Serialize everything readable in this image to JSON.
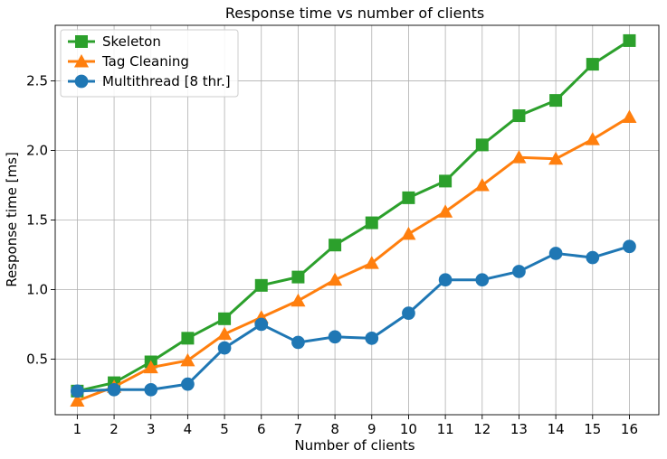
{
  "chart_data": {
    "type": "line",
    "title": "Response time vs number of clients",
    "xlabel": "Number of clients",
    "ylabel": "Response time [ms]",
    "x": [
      1,
      2,
      3,
      4,
      5,
      6,
      7,
      8,
      9,
      10,
      11,
      12,
      13,
      14,
      15,
      16
    ],
    "xlim": [
      0.4,
      16.8
    ],
    "ylim": [
      0.1,
      2.9
    ],
    "yticks": [
      0.5,
      1.0,
      1.5,
      2.0,
      2.5
    ],
    "ytick_labels": [
      "0.5",
      "1.0",
      "1.5",
      "2.0",
      "2.5"
    ],
    "grid": true,
    "legend_position": "upper left",
    "series": [
      {
        "name": "Skeleton",
        "color": "#2ca02c",
        "marker": "square",
        "values": [
          0.27,
          0.33,
          0.48,
          0.65,
          0.79,
          1.03,
          1.09,
          1.32,
          1.48,
          1.66,
          1.78,
          2.04,
          2.25,
          2.36,
          2.62,
          2.79
        ]
      },
      {
        "name": "Tag Cleaning",
        "color": "#ff7f0e",
        "marker": "triangle",
        "values": [
          0.2,
          0.3,
          0.44,
          0.49,
          0.68,
          0.8,
          0.92,
          1.07,
          1.19,
          1.4,
          1.56,
          1.75,
          1.95,
          1.94,
          2.08,
          2.24
        ]
      },
      {
        "name": "Multithread [8 thr.]",
        "color": "#1f77b4",
        "marker": "circle",
        "values": [
          0.27,
          0.28,
          0.28,
          0.32,
          0.58,
          0.75,
          0.62,
          0.66,
          0.65,
          0.83,
          1.07,
          1.07,
          1.13,
          1.26,
          1.23,
          1.31
        ]
      }
    ]
  }
}
